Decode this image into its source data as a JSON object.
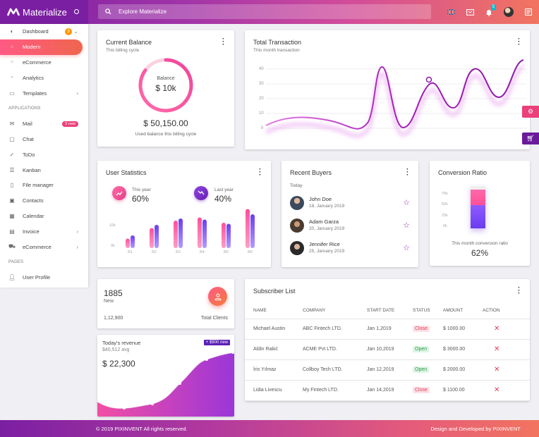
{
  "brand": {
    "name": "Materialize"
  },
  "search": {
    "placeholder": "Explore Materialize"
  },
  "topbar": {
    "notification_count": "5"
  },
  "sidebar": {
    "dashboard": {
      "label": "Dashboard",
      "badge": "3"
    },
    "sub_items": [
      {
        "label": "Modern",
        "active": true
      },
      {
        "label": "eCommerce"
      },
      {
        "label": "Analytics"
      }
    ],
    "templates": "Templates",
    "applications_header": "APPLICATIONS",
    "apps": [
      {
        "label": "Mail",
        "icon": "mail-icon",
        "badge": "5 new"
      },
      {
        "label": "Chat",
        "icon": "chat-icon"
      },
      {
        "label": "ToDo",
        "icon": "check-icon"
      },
      {
        "label": "Kanban",
        "icon": "list-icon"
      },
      {
        "label": "File manager",
        "icon": "file-icon"
      },
      {
        "label": "Contacts",
        "icon": "contacts-icon"
      },
      {
        "label": "Calendar",
        "icon": "calendar-icon"
      },
      {
        "label": "Invoice",
        "icon": "invoice-icon",
        "chevron": true
      },
      {
        "label": "eCommerce",
        "icon": "cart-icon",
        "chevron": true
      }
    ],
    "pages_header": "PAGES",
    "pages": [
      {
        "label": "User Profile",
        "icon": "user-icon"
      }
    ]
  },
  "balance": {
    "title": "Current Balance",
    "subtitle": "This billing cycle",
    "ring_label": "Balance",
    "ring_value": "$ 10k",
    "amount": "$ 50,150.00",
    "caption": "Used balance this billing cycle",
    "ring_fill": 0.85
  },
  "transactions": {
    "title": "Total Transaction",
    "subtitle": "This month transaction",
    "y_ticks": [
      "40",
      "30",
      "20",
      "10",
      "0"
    ]
  },
  "user_stats": {
    "title": "User Statistics",
    "this_year": {
      "label": "This year",
      "value": "60%"
    },
    "last_year": {
      "label": "Last year",
      "value": "40%"
    },
    "y_ticks": [
      "10k",
      "0k"
    ]
  },
  "chart_data": {
    "type": "bar",
    "categories": [
      "B1",
      "B2",
      "B3",
      "B4",
      "B5",
      "B6"
    ],
    "series": [
      {
        "values": [
          4.5,
          9.5,
          13,
          14.5,
          12,
          18.5
        ]
      },
      {
        "values": [
          6,
          11,
          14,
          13.5,
          11.5,
          16
        ]
      }
    ],
    "ylim": [
      0,
      20
    ],
    "colors": [
      "#ff4f9a",
      "#7c4dff"
    ]
  },
  "recent_buyers": {
    "title": "Recent Buyers",
    "group": "Today",
    "buyers": [
      {
        "name": "John Doe",
        "date": "18, January 2019"
      },
      {
        "name": "Adam Garza",
        "date": "20, January 2019"
      },
      {
        "name": "Jennifer Rice",
        "date": "25, January 2019"
      }
    ]
  },
  "conversion": {
    "title": "Conversion Ratio",
    "y_ticks": [
      "75k",
      "50k",
      "25k",
      "0k"
    ],
    "caption": "This month conversion ratio",
    "value": "62%"
  },
  "clients": {
    "count": "1885",
    "count_label": "New",
    "total": "1,12,900",
    "total_label": "Total Clients"
  },
  "revenue": {
    "title": "Today's revenue",
    "avg": "$40,512 avg",
    "amount": "$ 22,300",
    "badge": "+ $900 new"
  },
  "subscribers": {
    "title": "Subscriber List",
    "columns": [
      "NAME",
      "COMPANY",
      "START DATE",
      "STATUS",
      "AMOUNT",
      "ACTION"
    ],
    "rows": [
      {
        "name": "Michael Austin",
        "company": "ABC Fintech LTD.",
        "date": "Jan 1,2019",
        "status": "Close",
        "amount": "$ 1000.00"
      },
      {
        "name": "Aldin Rakić",
        "company": "ACME Pvt LTD.",
        "date": "Jan 10,2019",
        "status": "Open",
        "amount": "$ 3000.00"
      },
      {
        "name": "İris Yılmaz",
        "company": "Collboy Tech LTD.",
        "date": "Jan 12,2019",
        "status": "Open",
        "amount": "$ 2000.00"
      },
      {
        "name": "Lidia Livescu",
        "company": "My Fintech LTD.",
        "date": "Jan 14,2019",
        "status": "Close",
        "amount": "$ 1100.00"
      }
    ]
  },
  "footer": {
    "copyright": "© 2019 PIXINVENT All rights reserved.",
    "credit": "Design and Developed by PIXINVENT"
  }
}
